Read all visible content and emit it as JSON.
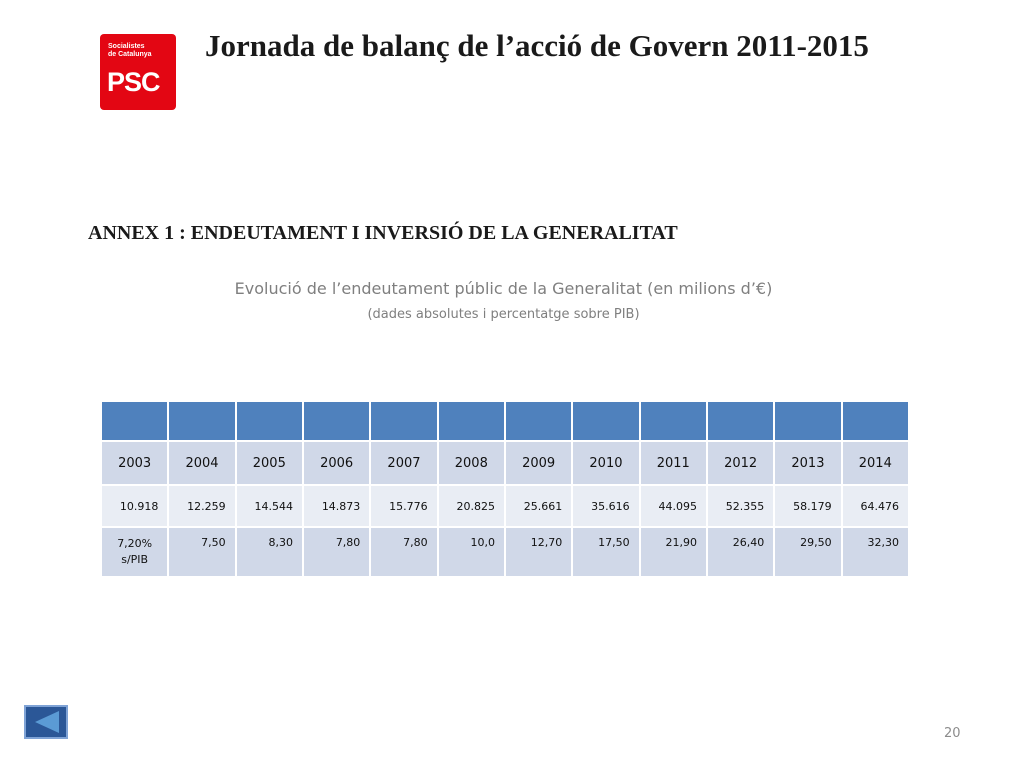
{
  "logo": {
    "line1": "Socialistes",
    "line2": "de Catalunya",
    "mark": "PSC",
    "color": "#e30613"
  },
  "title": "Jornada de balanç de l’acció de Govern 2011-2015",
  "annex_heading": "ANNEX 1 : ENDEUTAMENT I INVERSIÓ DE LA GENERALITAT",
  "subtitle": "Evolució de l’endeutament públic de la Generalitat (en milions d’€)",
  "note": "(dades absolutes i percentatge sobre PIB)",
  "table": {
    "header_color": "#4f81bd",
    "years": [
      "2003",
      "2004",
      "2005",
      "2006",
      "2007",
      "2008",
      "2009",
      "2010",
      "2011",
      "2012",
      "2013",
      "2014"
    ],
    "absolute": [
      "10.918",
      "12.259",
      "14.544",
      "14.873",
      "15.776",
      "20.825",
      "25.661",
      "35.616",
      "44.095",
      "52.355",
      "58.179",
      "64.476"
    ],
    "percent_first_line1": "7,20%",
    "percent_first_line2": "s/PIB",
    "percent": [
      "7,50",
      "8,30",
      "7,80",
      "7,80",
      "10,0",
      "12,70",
      "17,50",
      "21,90",
      "26,40",
      "29,50",
      "32,30"
    ]
  },
  "nav": {
    "back_icon": "back-arrow-icon"
  },
  "page_number": "20"
}
